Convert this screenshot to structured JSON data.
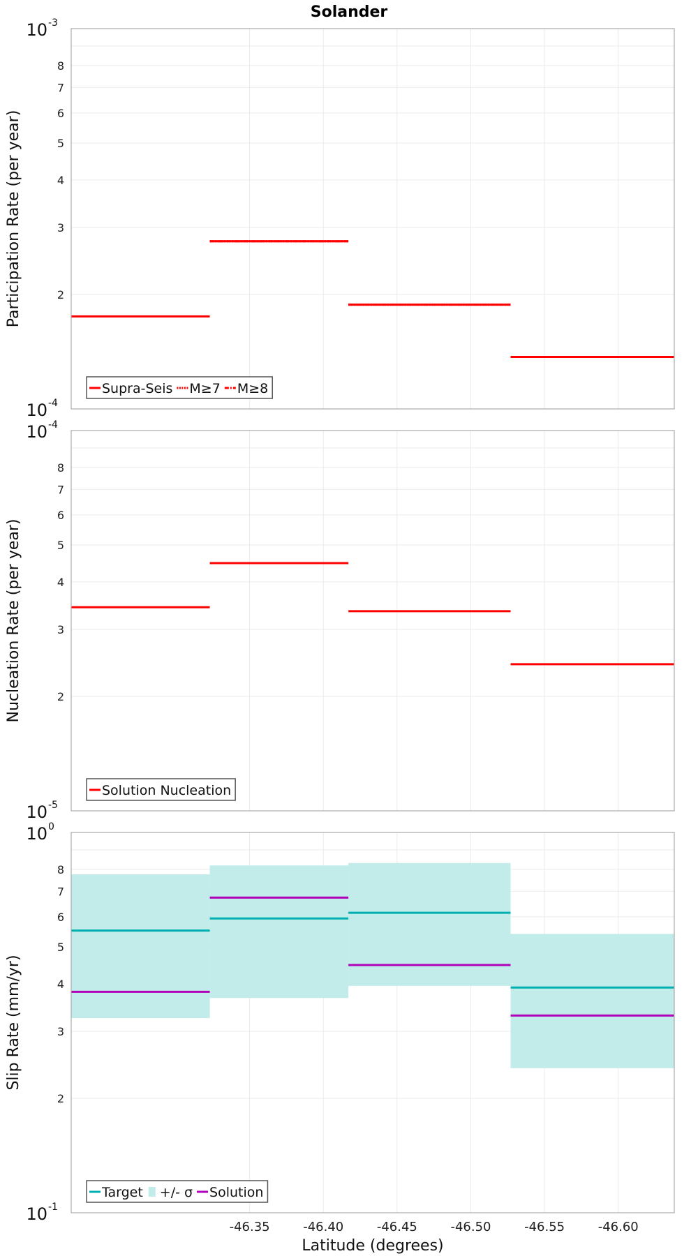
{
  "chart_data": [
    {
      "type": "line",
      "step": true,
      "title": "Solander",
      "ylabel": "Participation Rate (per year)",
      "yscale": "log",
      "ylim": [
        0.0001,
        0.001
      ],
      "xlim": [
        -46.229,
        -46.638
      ],
      "x_edges": [
        -46.229,
        -46.323,
        -46.417,
        -46.527,
        -46.638
      ],
      "y_tick_minor_labels": [
        "2",
        "3",
        "4",
        "5",
        "6",
        "7",
        "8"
      ],
      "y_major_labels": [
        {
          "base": "10",
          "exp": "-4"
        },
        {
          "base": "10",
          "exp": "-3"
        }
      ],
      "series": [
        {
          "name": "Supra-Seis",
          "style": "solid",
          "color": "#ff0000",
          "values": [
            0.000175,
            0.000276,
            0.000188,
            0.000137
          ]
        },
        {
          "name": "M≥7",
          "style": "dotted",
          "color": "#ff0000",
          "values": [
            0.000175,
            0.000276,
            0.000188,
            0.000137
          ]
        },
        {
          "name": "M≥8",
          "style": "dashdot",
          "color": "#ff0000",
          "values": [
            0.000175,
            0.000276,
            0.000188,
            0.000137
          ]
        }
      ],
      "legend": "bottom-left"
    },
    {
      "type": "line",
      "step": true,
      "ylabel": "Nucleation Rate (per year)",
      "yscale": "log",
      "ylim": [
        1e-05,
        0.0001
      ],
      "xlim": [
        -46.229,
        -46.638
      ],
      "x_edges": [
        -46.229,
        -46.323,
        -46.417,
        -46.527,
        -46.638
      ],
      "y_tick_minor_labels": [
        "2",
        "3",
        "4",
        "5",
        "6",
        "7",
        "8"
      ],
      "y_major_labels": [
        {
          "base": "10",
          "exp": "-5"
        },
        {
          "base": "10",
          "exp": "-4"
        }
      ],
      "series": [
        {
          "name": "Solution Nucleation",
          "style": "solid",
          "color": "#ff0000",
          "values": [
            3.43e-05,
            4.48e-05,
            3.35e-05,
            2.43e-05
          ]
        }
      ],
      "legend": "bottom-left"
    },
    {
      "type": "line",
      "step": true,
      "ylabel": "Slip Rate (mm/yr)",
      "xlabel": "Latitude (degrees)",
      "yscale": "log",
      "ylim": [
        0.1,
        1
      ],
      "xlim": [
        -46.229,
        -46.638
      ],
      "x_edges": [
        -46.229,
        -46.323,
        -46.417,
        -46.527,
        -46.638
      ],
      "x_ticks": [
        -46.35,
        -46.4,
        -46.45,
        -46.5,
        -46.55,
        -46.6
      ],
      "x_tick_labels": [
        "-46.35",
        "-46.40",
        "-46.45",
        "-46.50",
        "-46.55",
        "-46.60"
      ],
      "y_tick_minor_labels": [
        "2",
        "3",
        "4",
        "5",
        "6",
        "7",
        "8"
      ],
      "y_major_labels": [
        {
          "base": "10",
          "exp": "-1"
        },
        {
          "base": "10",
          "exp": "0"
        }
      ],
      "bands": [
        {
          "name": "+/- σ",
          "color": "#c2ecea",
          "lower": [
            0.325,
            0.367,
            0.395,
            0.24
          ],
          "upper": [
            0.776,
            0.819,
            0.831,
            0.541
          ]
        }
      ],
      "series": [
        {
          "name": "Target",
          "style": "solid",
          "color": "#00b0b0",
          "values": [
            0.552,
            0.594,
            0.615,
            0.391
          ]
        },
        {
          "name": "Solution",
          "style": "solid",
          "color": "#b000b8",
          "values": [
            0.381,
            0.674,
            0.448,
            0.33
          ]
        }
      ],
      "legend_order": [
        "Target",
        "+/- σ",
        "Solution"
      ],
      "legend": "bottom-left"
    }
  ]
}
